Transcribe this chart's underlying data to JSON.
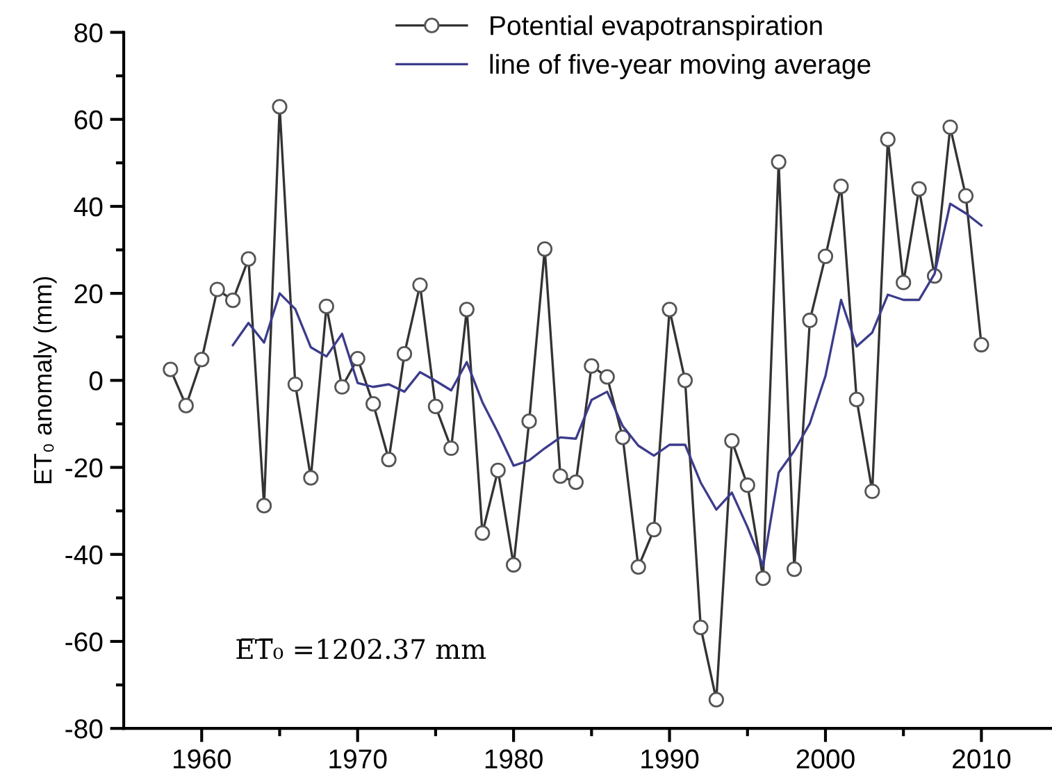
{
  "chart_data": {
    "type": "line",
    "ylabel": "ET₀ anomaly (mm)",
    "annotations": [
      "E̅T̅₀ =1202.37 mm"
    ],
    "xlim": [
      1955,
      2014.5
    ],
    "xticks": [
      1960,
      1970,
      1980,
      1990,
      2000,
      2010
    ],
    "ylim": [
      -80,
      80
    ],
    "yticks": [
      -80,
      -60,
      -40,
      -20,
      0,
      20,
      40,
      60,
      80
    ],
    "grid": false,
    "legend": "top",
    "line_style": "solid",
    "series": [
      {
        "name": "Potential evapotranspiration",
        "color": "#333333",
        "marker": "circle",
        "x": [
          1958,
          1959,
          1960,
          1961,
          1962,
          1963,
          1964,
          1965,
          1966,
          1967,
          1968,
          1969,
          1970,
          1971,
          1972,
          1973,
          1974,
          1975,
          1976,
          1977,
          1978,
          1979,
          1980,
          1981,
          1982,
          1983,
          1984,
          1985,
          1986,
          1987,
          1988,
          1989,
          1990,
          1991,
          1992,
          1993,
          1994,
          1995,
          1996,
          1997,
          1998,
          1999,
          2000,
          2001,
          2002,
          2003,
          2004,
          2005,
          2006,
          2007,
          2008,
          2009,
          2010
        ],
        "values": [
          2.5,
          -5.8,
          4.8,
          20.9,
          18.4,
          27.9,
          -28.8,
          62.9,
          -0.9,
          -22.4,
          17,
          -1.5,
          5,
          -5.4,
          -18.2,
          6.1,
          21.9,
          -6,
          -15.6,
          16.3,
          -35.1,
          -20.7,
          -42.4,
          -9.4,
          30.2,
          -22,
          -23.4,
          3.3,
          0.8,
          -13.1,
          -42.9,
          -34.3,
          16.3,
          0,
          -56.8,
          -73.4,
          -13.9,
          -24.1,
          -45.5,
          50.2,
          -43.4,
          13.8,
          28.5,
          44.6,
          -4.4,
          -25.5,
          55.4,
          22.5,
          44,
          24,
          58.2,
          42.4,
          8.2
        ]
      },
      {
        "name": "line of five-year moving average",
        "color": "#3c3c8c",
        "marker": "none",
        "x": [
          1962,
          1963,
          1964,
          1965,
          1966,
          1967,
          1968,
          1969,
          1970,
          1971,
          1972,
          1973,
          1974,
          1975,
          1976,
          1977,
          1978,
          1979,
          1980,
          1981,
          1982,
          1983,
          1984,
          1985,
          1986,
          1987,
          1988,
          1989,
          1990,
          1991,
          1992,
          1993,
          1994,
          1995,
          1996,
          1997,
          1998,
          1999,
          2000,
          2001,
          2002,
          2003,
          2004,
          2005,
          2006,
          2007,
          2008,
          2009,
          2010
        ],
        "values": [
          8.1,
          13.2,
          8.7,
          20,
          16.4,
          7.6,
          5.5,
          10.7,
          -0.6,
          -1.5,
          -0.9,
          -2.6,
          1.9,
          -0.1,
          -2.3,
          4.2,
          -5,
          -12,
          -19.6,
          -18.4,
          -15.6,
          -13.1,
          -13.4,
          -4.5,
          -2.6,
          -10.5,
          -15,
          -17.3,
          -14.8,
          -14.8,
          -23.5,
          -29.7,
          -25.8,
          -33.7,
          -42.7,
          -21.2,
          -16.2,
          -9.9,
          1,
          18.5,
          7.8,
          11,
          19.7,
          18.5,
          18.5,
          24.5,
          40.6,
          38.4,
          35.6
        ]
      }
    ]
  }
}
